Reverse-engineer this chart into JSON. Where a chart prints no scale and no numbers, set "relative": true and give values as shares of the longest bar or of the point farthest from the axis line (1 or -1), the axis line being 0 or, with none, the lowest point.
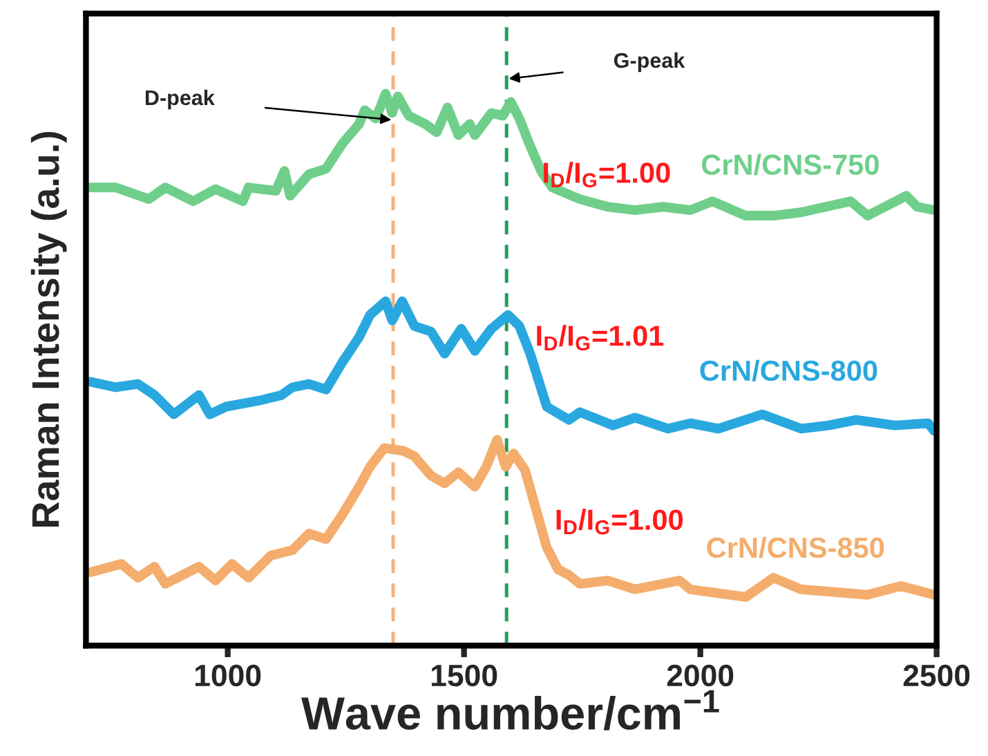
{
  "chart_data": {
    "type": "line",
    "relative": true,
    "xlabel": "Wave number/cm$^{−1}$",
    "ylabel": "Raman Intensity (a.u.)",
    "xlim": [
      700,
      2500
    ],
    "xticks": [
      1000,
      1500,
      2000,
      2500
    ],
    "grid": false,
    "legend": false,
    "line_style": "solid",
    "marker": "none",
    "series": [
      {
        "name": "CrN/CNS-750",
        "color": "#6fcf8a",
        "x": [
          710,
          763,
          833,
          868,
          927,
          974,
          1032,
          1044,
          1102,
          1120,
          1132,
          1172,
          1208,
          1243,
          1278,
          1290,
          1313,
          1334,
          1348,
          1360,
          1383,
          1418,
          1442,
          1465,
          1488,
          1512,
          1523,
          1558,
          1582,
          1599,
          1617,
          1640,
          1663,
          1687,
          1745,
          1804,
          1862,
          1921,
          1979,
          2026,
          2096,
          2155,
          2213,
          2318,
          2354,
          2436,
          2459,
          2495
        ],
        "values": [
          0.83,
          0.83,
          0.809,
          0.83,
          0.805,
          0.827,
          0.805,
          0.83,
          0.824,
          0.86,
          0.815,
          0.854,
          0.864,
          0.91,
          0.945,
          0.97,
          0.955,
          1.0,
          0.965,
          0.995,
          0.96,
          0.945,
          0.93,
          0.975,
          0.925,
          0.945,
          0.925,
          0.965,
          0.96,
          0.985,
          0.955,
          0.905,
          0.86,
          0.83,
          0.809,
          0.795,
          0.789,
          0.795,
          0.789,
          0.805,
          0.779,
          0.779,
          0.785,
          0.805,
          0.779,
          0.815,
          0.795,
          0.789
        ]
      },
      {
        "name": "CrN/CNS-800",
        "color": "#29a8e0",
        "x": [
          710,
          763,
          810,
          845,
          886,
          939,
          962,
          997,
          1067,
          1114,
          1137,
          1172,
          1208,
          1243,
          1278,
          1301,
          1334,
          1348,
          1369,
          1395,
          1430,
          1459,
          1494,
          1523,
          1558,
          1593,
          1617,
          1640,
          1675,
          1722,
          1745,
          1815,
          1862,
          1932,
          1979,
          2038,
          2131,
          2213,
          2271,
          2330,
          2412,
          2482,
          2495
        ],
        "values": [
          0.478,
          0.468,
          0.474,
          0.454,
          0.419,
          0.454,
          0.419,
          0.433,
          0.444,
          0.454,
          0.468,
          0.474,
          0.464,
          0.514,
          0.559,
          0.599,
          0.624,
          0.589,
          0.624,
          0.579,
          0.569,
          0.529,
          0.574,
          0.534,
          0.574,
          0.599,
          0.579,
          0.529,
          0.433,
          0.409,
          0.423,
          0.399,
          0.413,
          0.393,
          0.403,
          0.393,
          0.419,
          0.393,
          0.399,
          0.409,
          0.399,
          0.403,
          0.389
        ]
      },
      {
        "name": "CrN/CNS-850",
        "color": "#f4ad6c",
        "x": [
          710,
          775,
          810,
          845,
          868,
          939,
          974,
          1009,
          1044,
          1091,
          1137,
          1172,
          1208,
          1243,
          1278,
          1301,
          1331,
          1371,
          1395,
          1430,
          1459,
          1488,
          1523,
          1547,
          1570,
          1588,
          1605,
          1629,
          1652,
          1675,
          1699,
          1722,
          1745,
          1804,
          1862,
          1956,
          1979,
          2096,
          2155,
          2213,
          2271,
          2353,
          2424,
          2495
        ],
        "values": [
          0.133,
          0.148,
          0.123,
          0.143,
          0.112,
          0.143,
          0.118,
          0.148,
          0.123,
          0.163,
          0.173,
          0.203,
          0.193,
          0.238,
          0.288,
          0.324,
          0.358,
          0.353,
          0.343,
          0.308,
          0.294,
          0.314,
          0.288,
          0.324,
          0.373,
          0.324,
          0.348,
          0.318,
          0.248,
          0.178,
          0.138,
          0.128,
          0.112,
          0.118,
          0.102,
          0.118,
          0.102,
          0.088,
          0.123,
          0.102,
          0.098,
          0.092,
          0.108,
          0.092
        ]
      }
    ],
    "ref_lines": [
      {
        "axis": "x",
        "value": 1350,
        "color": "#f6b27a",
        "line_style": "dashed"
      },
      {
        "axis": "x",
        "value": 1590,
        "color": "#22a05a",
        "line_style": "dashed"
      }
    ],
    "annotations": [
      "D-peak",
      "G-peak",
      "I$_{D}$/I$_{G}$=1.00",
      "I$_{D}$/I$_{G}$=1.01",
      "I$_{D}$/I$_{G}$=1.00"
    ]
  }
}
